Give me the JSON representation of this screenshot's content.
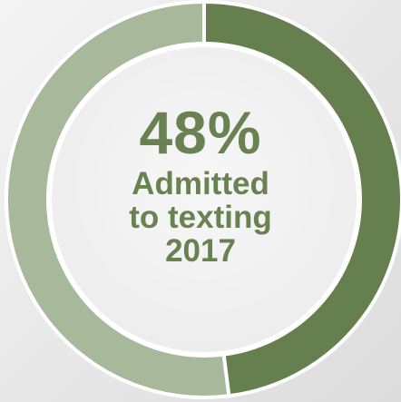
{
  "chart_data": {
    "type": "pie",
    "variant": "donut",
    "values": [
      48,
      52
    ],
    "colors": [
      "#657f4f",
      "#a8b89a"
    ],
    "center_label": {
      "value": "48%",
      "lines": [
        "Admitted",
        "to texting",
        "2017"
      ]
    }
  }
}
